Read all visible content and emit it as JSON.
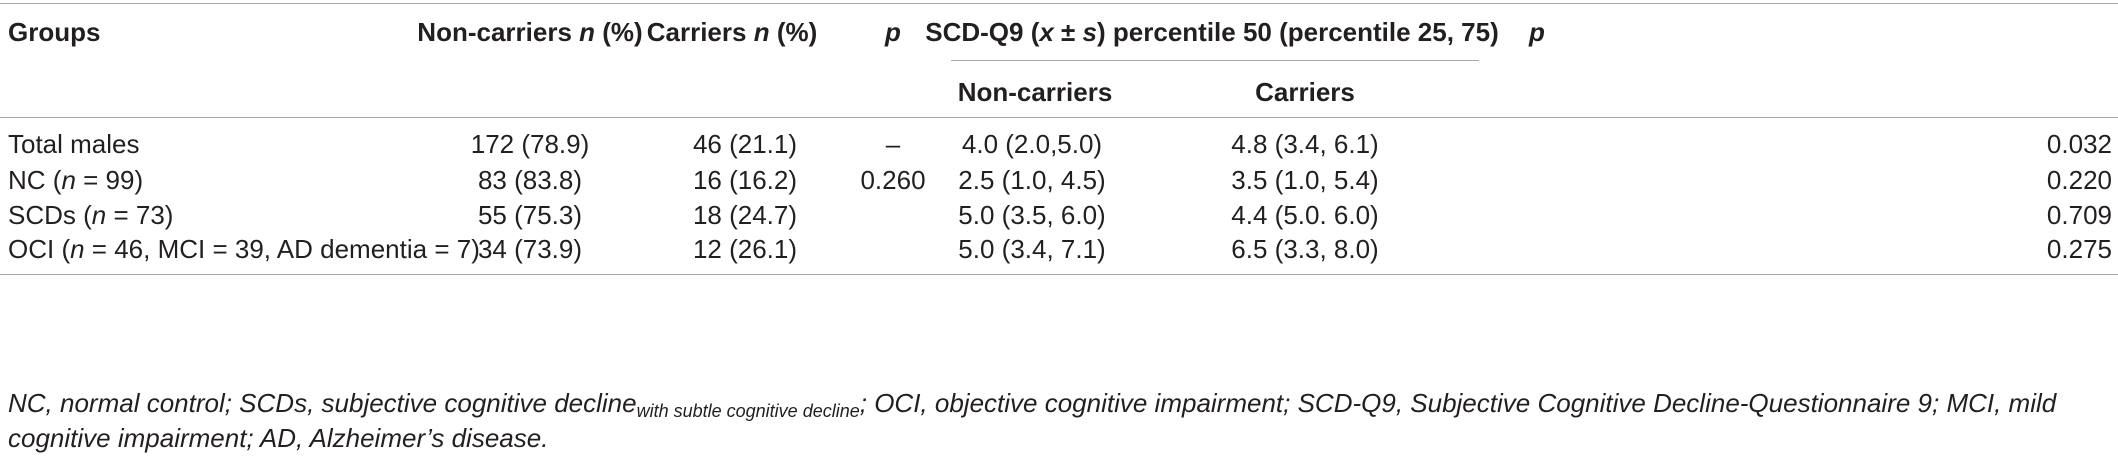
{
  "table": {
    "headers": {
      "groups": "Groups",
      "non_carriers": "Non-carriers n (%)",
      "carriers": "Carriers n (%)",
      "p1": "p",
      "scd": "SCD-Q9 (x ± s) percentile 50 (percentile 25, 75)",
      "scd_non_carriers": "Non-carriers",
      "scd_carriers": "Carriers",
      "p2": "p"
    },
    "rows": [
      {
        "group_pre": "Total males",
        "group_n": "",
        "group_post": "",
        "non_carriers": "172 (78.9)",
        "carriers": "46 (21.1)",
        "p1": "–",
        "scd_non": "4.0 (2.0,5.0)",
        "scd_car": "4.8 (3.4, 6.1)",
        "p2": "0.032"
      },
      {
        "group_pre": "NC (",
        "group_n": "n",
        "group_post": " = 99)",
        "non_carriers": "83 (83.8)",
        "carriers": "16 (16.2)",
        "p1": "0.260",
        "scd_non": "2.5 (1.0, 4.5)",
        "scd_car": "3.5 (1.0, 5.4)",
        "p2": "0.220"
      },
      {
        "group_pre": "SCDs (",
        "group_n": "n",
        "group_post": " = 73)",
        "non_carriers": "55 (75.3)",
        "carriers": "18 (24.7)",
        "p1": "",
        "scd_non": "5.0 (3.5, 6.0)",
        "scd_car": "4.4 (5.0. 6.0)",
        "p2": "0.709"
      },
      {
        "group_pre": "OCI (",
        "group_n": "n",
        "group_post": " = 46, MCI = 39, AD dementia = 7)",
        "non_carriers": "34 (73.9)",
        "carriers": "12 (26.1)",
        "p1": "",
        "scd_non": "5.0 (3.4, 7.1)",
        "scd_car": "6.5 (3.3, 8.0)",
        "p2": "0.275"
      }
    ]
  },
  "footnote": {
    "part1": "NC, normal control; SCDs, subjective cognitive decline",
    "sub": "with subtle cognitive decline",
    "part2": "; OCI, objective cognitive impairment; SCD-Q9, Subjective Cognitive Decline-Questionnaire 9; MCI, mild cognitive impairment; AD, Alzheimer’s disease."
  }
}
